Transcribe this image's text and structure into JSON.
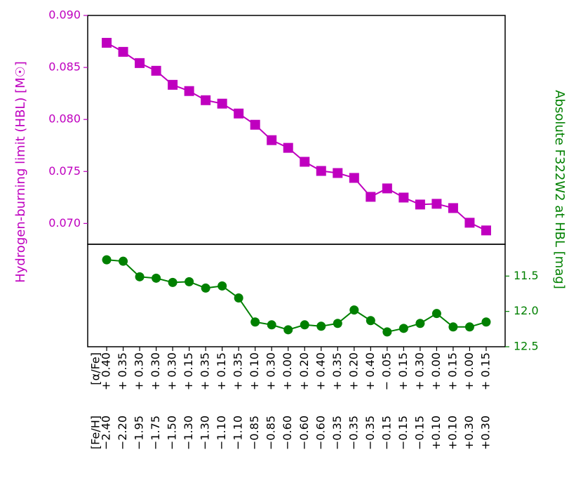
{
  "chart_data": [
    {
      "type": "line",
      "y_label": "Hydrogen-burning limit (HBL) [M☉]",
      "axis_color": "#bf00bf",
      "ylim": [
        0.068,
        0.09
      ],
      "yticks": [
        {
          "value": 0.07,
          "label": "0.070"
        },
        0.075,
        {
          "value": 0.08,
          "label": "0.080"
        },
        0.085,
        {
          "value": 0.09,
          "label": "0.090"
        }
      ],
      "series": [
        {
          "color": "#bf00bf",
          "marker": "square",
          "values": [
            0.08737,
            0.0865,
            0.08542,
            0.08468,
            0.08333,
            0.08273,
            0.08185,
            0.08152,
            0.08057,
            0.07949,
            0.07801,
            0.07727,
            0.07593,
            0.07505,
            0.07485,
            0.07438,
            0.07256,
            0.07337,
            0.07249,
            0.07182,
            0.07189,
            0.07148,
            0.07007,
            0.06933
          ]
        }
      ]
    },
    {
      "type": "line",
      "y_label": "Absolute F322W2 at HBL [mag]",
      "axis_color": "#008000",
      "y_axis_side": "right",
      "ylim": [
        12.5,
        11.05
      ],
      "yticks": [
        11.5,
        {
          "value": 12.0,
          "label": "12.0"
        },
        12.5
      ],
      "series": [
        {
          "color": "#008000",
          "marker": "circle",
          "values": [
            11.27,
            11.29,
            11.51,
            11.53,
            11.59,
            11.58,
            11.67,
            11.64,
            11.81,
            12.15,
            12.19,
            12.26,
            12.19,
            12.21,
            12.17,
            11.98,
            12.13,
            12.29,
            12.24,
            12.17,
            12.03,
            12.22,
            12.22,
            12.15
          ]
        }
      ],
      "x_label_rows": [
        {
          "label": "[α/Fe]",
          "values": [
            "+ 0.40",
            "+ 0.35",
            "+ 0.30",
            "+ 0.30",
            "+ 0.30",
            "+ 0.15",
            "+ 0.35",
            "+ 0.15",
            "+ 0.35",
            "+ 0.10",
            "+ 0.30",
            "+ 0.00",
            "+ 0.20",
            "+ 0.40",
            "+ 0.35",
            "+ 0.20",
            "+ 0.40",
            "− 0.05",
            "+ 0.15",
            "+ 0.30",
            "+ 0.00",
            "+ 0.15",
            "+ 0.00",
            "+ 0.15"
          ]
        },
        {
          "label": "[Fe/H]",
          "values": [
            "−2.40",
            "−2.20",
            "−1.95",
            "−1.75",
            "−1.50",
            "−1.30",
            "−1.30",
            "−1.10",
            "−1.10",
            "−0.85",
            "−0.85",
            "−0.60",
            "−0.60",
            "−0.60",
            "−0.35",
            "−0.35",
            "−0.35",
            "−0.15",
            "−0.15",
            "−0.15",
            "+0.10",
            "+0.10",
            "+0.30",
            "+0.30"
          ]
        }
      ]
    }
  ]
}
